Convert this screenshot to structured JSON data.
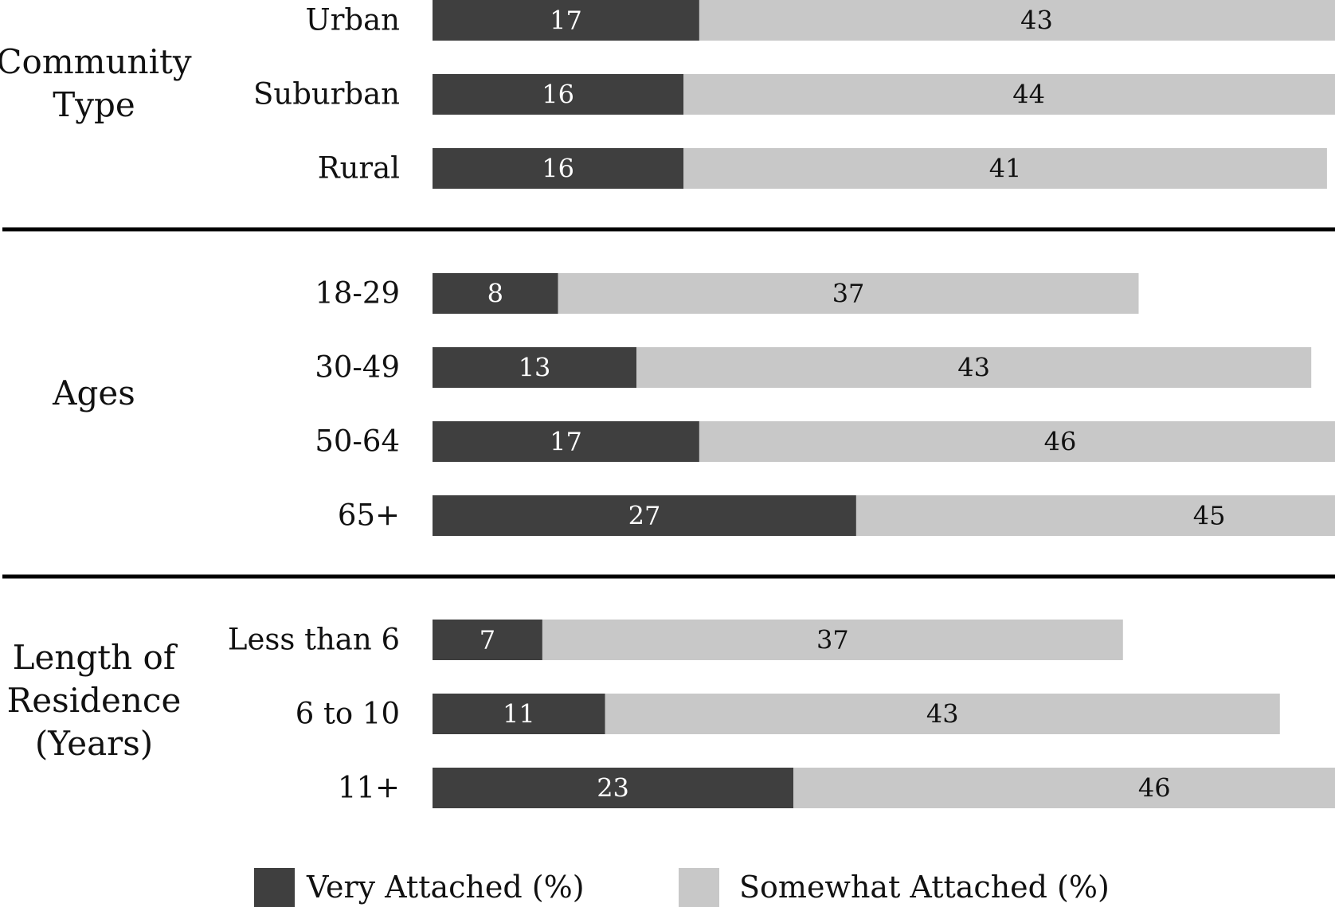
{
  "chart_data": {
    "type": "bar",
    "orientation": "horizontal",
    "stacked": true,
    "grid": false,
    "legend_position": "bottom",
    "xlim": [
      0,
      72
    ],
    "colors": {
      "very": "#3f3f3f",
      "somewhat": "#c8c8c8",
      "separator": "#000000"
    },
    "series": [
      {
        "name": "Very Attached (%)",
        "key": "very"
      },
      {
        "name": "Somewhat Attached (%)",
        "key": "somewhat"
      }
    ],
    "groups": [
      {
        "label": [
          "Community",
          "Type"
        ],
        "rows": [
          {
            "category": "Urban",
            "very": 17,
            "somewhat": 43
          },
          {
            "category": "Suburban",
            "very": 16,
            "somewhat": 44
          },
          {
            "category": "Rural",
            "very": 16,
            "somewhat": 41
          }
        ]
      },
      {
        "label": [
          "Ages"
        ],
        "rows": [
          {
            "category": "18-29",
            "very": 8,
            "somewhat": 37
          },
          {
            "category": "30-49",
            "very": 13,
            "somewhat": 43
          },
          {
            "category": "50-64",
            "very": 17,
            "somewhat": 46
          },
          {
            "category": "65+",
            "very": 27,
            "somewhat": 45
          }
        ]
      },
      {
        "label": [
          "Length of",
          "Residence",
          "(Years)"
        ],
        "rows": [
          {
            "category": "Less than 6",
            "very": 7,
            "somewhat": 37
          },
          {
            "category": "6 to 10",
            "very": 11,
            "somewhat": 43
          },
          {
            "category": "11+",
            "very": 23,
            "somewhat": 46
          }
        ]
      }
    ]
  }
}
